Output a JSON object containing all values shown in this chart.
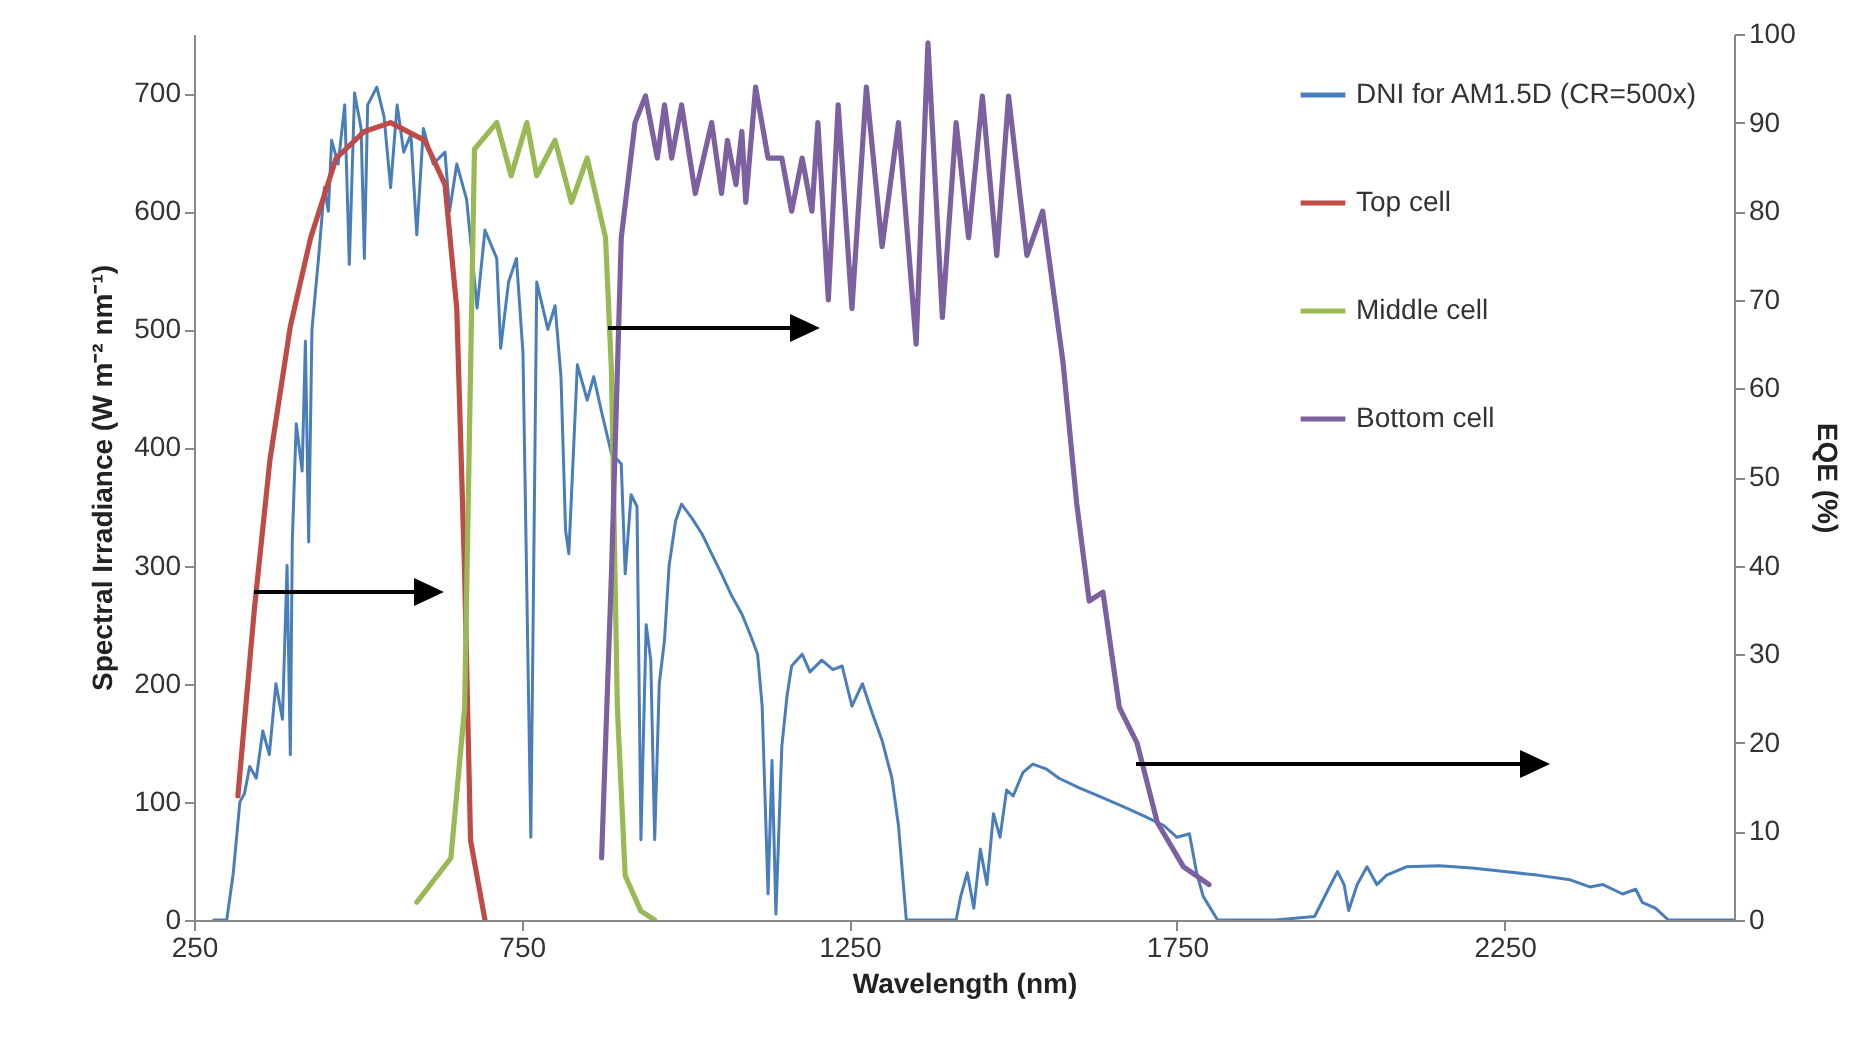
{
  "chart_data": {
    "type": "line",
    "xlabel": "Wavelength (nm)",
    "ylabel": "Spectral Irradiance (W m⁻² nm⁻¹)",
    "y2label": "EQE (%)",
    "xlim": [
      250,
      2600
    ],
    "xticks": [
      250,
      750,
      1250,
      1750,
      2250
    ],
    "ylim": [
      0,
      750
    ],
    "yticks": [
      0,
      100,
      200,
      300,
      400,
      500,
      600,
      700
    ],
    "y2lim": [
      0,
      100
    ],
    "y2ticks": [
      0,
      10,
      20,
      30,
      40,
      50,
      60,
      70,
      80,
      90,
      100
    ],
    "legend": "top right",
    "series": [
      {
        "name": "DNI for AM1.5D (CR=500x)",
        "color": "#4a7ebb",
        "x": [
          280,
          300,
          310,
          320,
          327,
          335,
          345,
          355,
          365,
          375,
          385,
          392,
          397,
          400,
          406,
          415,
          420,
          425,
          430,
          440,
          449,
          455,
          460,
          470,
          480,
          487,
          495,
          505,
          510,
          515,
          529,
          540,
          550,
          560,
          570,
          581,
          590,
          600,
          615,
          633,
          640,
          651,
          666,
          682,
          694,
          712,
          718,
          730,
          742,
          752,
          764,
          773,
          790,
          801,
          810,
          817,
          822,
          835,
          850,
          860,
          872,
          887,
          902,
          908,
          917,
          926,
          932,
          940,
          947,
          953,
          960,
          968,
          975,
          985,
          994,
          1010,
          1025,
          1040,
          1055,
          1070,
          1086,
          1100,
          1110,
          1117,
          1126,
          1132,
          1138,
          1147,
          1155,
          1162,
          1178,
          1190,
          1208,
          1225,
          1239,
          1254,
          1270,
          1285,
          1300,
          1315,
          1325,
          1337,
          1346,
          1400,
          1413,
          1420,
          1430,
          1440,
          1450,
          1460,
          1470,
          1480,
          1490,
          1500,
          1515,
          1530,
          1550,
          1570,
          1600,
          1630,
          1668,
          1700,
          1730,
          1750,
          1769,
          1780,
          1790,
          1812,
          1900,
          1960,
          1980,
          1995,
          2005,
          2012,
          2025,
          2040,
          2055,
          2070,
          2100,
          2150,
          2200,
          2250,
          2300,
          2350,
          2380,
          2400,
          2430,
          2450,
          2460,
          2480,
          2500,
          2600
        ],
        "values": [
          0,
          0,
          40,
          100,
          107,
          130,
          120,
          160,
          140,
          200,
          170,
          300,
          140,
          321,
          420,
          380,
          490,
          320,
          500,
          560,
          620,
          600,
          660,
          640,
          690,
          555,
          700,
          670,
          560,
          690,
          705,
          680,
          620,
          690,
          650,
          665,
          580,
          670,
          640,
          650,
          600,
          640,
          610,
          518,
          584,
          560,
          484,
          540,
          560,
          480,
          70,
          540,
          500,
          520,
          460,
          330,
          310,
          470,
          440,
          460,
          430,
          395,
          386,
          293,
          360,
          350,
          68,
          250,
          220,
          68,
          200,
          237,
          300,
          338,
          352,
          340,
          327,
          310,
          293,
          275,
          259,
          240,
          225,
          181,
          22,
          135,
          5,
          147,
          190,
          215,
          225,
          210,
          220,
          212,
          215,
          181,
          200,
          175,
          152,
          120,
          80,
          0,
          0,
          0,
          0,
          20,
          40,
          10,
          60,
          30,
          90,
          70,
          110,
          105,
          125,
          132,
          128,
          120,
          112,
          105,
          96,
          88,
          80,
          70,
          73,
          40,
          20,
          0,
          0,
          3,
          25,
          41,
          30,
          8,
          30,
          45,
          30,
          38,
          45,
          46,
          44,
          41,
          38,
          34,
          28,
          30,
          22,
          26,
          15,
          10,
          0,
          0
        ]
      },
      {
        "name": "Top cell",
        "color": "#be4b48",
        "axis": "y2",
        "x": [
          317,
          342,
          366,
          397,
          428,
          467,
          510,
          550,
          602,
          633,
          651,
          663,
          672,
          694
        ],
        "values": [
          14,
          35,
          52,
          67,
          77,
          86,
          89,
          90,
          88,
          83,
          69,
          39,
          9,
          0
        ]
      },
      {
        "name": "Middle cell",
        "color": "#98b954",
        "axis": "y2",
        "x": [
          590,
          642,
          663,
          672,
          678,
          712,
          734,
          758,
          773,
          801,
          826,
          850,
          878,
          887,
          896,
          908,
          932,
          953
        ],
        "values": [
          2,
          7,
          24,
          62,
          87,
          90,
          84,
          90,
          84,
          88,
          81,
          86,
          77,
          62,
          24,
          5,
          1,
          0
        ]
      },
      {
        "name": "Bottom cell",
        "color": "#7d60a0",
        "axis": "y2",
        "x": [
          872,
          887,
          902,
          923,
          939,
          957,
          968,
          979,
          994,
          1015,
          1040,
          1055,
          1064,
          1077,
          1086,
          1092,
          1107,
          1126,
          1147,
          1162,
          1178,
          1193,
          1202,
          1218,
          1233,
          1254,
          1276,
          1300,
          1325,
          1352,
          1370,
          1392,
          1413,
          1432,
          1453,
          1475,
          1493,
          1521,
          1545,
          1576,
          1597,
          1616,
          1637,
          1662,
          1689,
          1720,
          1760,
          1799
        ],
        "values": [
          7,
          39,
          77,
          90,
          93,
          86,
          92,
          86,
          92,
          82,
          90,
          82,
          88,
          83,
          89,
          81,
          94,
          86,
          86,
          80,
          86,
          80,
          90,
          70,
          92,
          69,
          94,
          76,
          90,
          65,
          99,
          68,
          90,
          77,
          93,
          75,
          93,
          75,
          80,
          63,
          47,
          36,
          37,
          24,
          20,
          11,
          6,
          4
        ]
      }
    ]
  }
}
